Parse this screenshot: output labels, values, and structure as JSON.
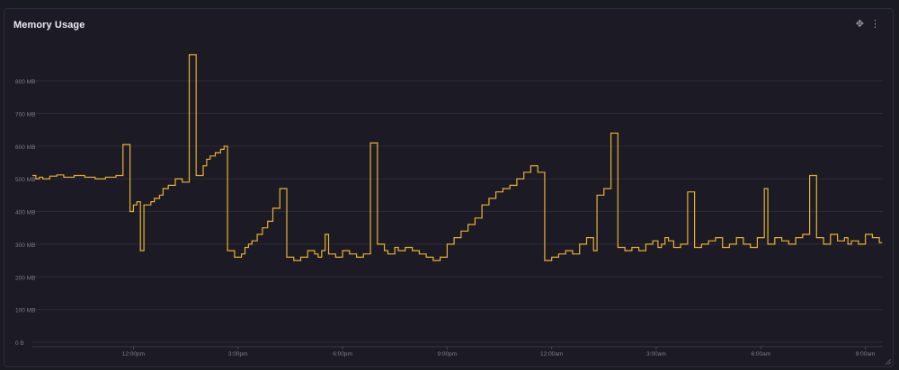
{
  "panel": {
    "title": "Memory Usage",
    "icons": [
      "move-icon",
      "more-vertical-icon"
    ]
  },
  "colors": {
    "background": "#1c1b25",
    "line": "#e8b030",
    "grid": "#2c2b35",
    "axis_text": "#7d7b8a"
  },
  "chart_data": {
    "type": "line",
    "title": "Memory Usage",
    "xlabel": "",
    "ylabel": "",
    "ylim": [
      0,
      800
    ],
    "y_ticks": [
      "0 B",
      "100 MB",
      "200 MB",
      "300 MB",
      "400 MB",
      "500 MB",
      "600 MB",
      "700 MB",
      "800 MB"
    ],
    "y_tick_values": [
      0,
      100,
      200,
      300,
      400,
      500,
      600,
      700,
      800
    ],
    "x_ticks": [
      "12:00pm",
      "3:00pm",
      "6:00pm",
      "9:00pm",
      "12:00am",
      "3:00am",
      "6:00am",
      "9:00am"
    ],
    "x_tick_hours": [
      12,
      15,
      18,
      21,
      24,
      27,
      30,
      33
    ],
    "xlim_hours": [
      9.1,
      33.5
    ],
    "grid": true,
    "step": true,
    "series": [
      {
        "color": "#e8b030",
        "x": [
          9.1,
          9.2,
          9.3,
          9.4,
          9.6,
          9.8,
          10.0,
          10.3,
          10.6,
          10.9,
          11.2,
          11.5,
          11.7,
          11.9,
          12.0,
          12.1,
          12.2,
          12.3,
          12.5,
          12.6,
          12.75,
          12.85,
          13.0,
          13.2,
          13.4,
          13.6,
          13.8,
          14.0,
          14.1,
          14.2,
          14.35,
          14.5,
          14.6,
          14.7,
          14.9,
          15.1,
          15.2,
          15.3,
          15.4,
          15.55,
          15.7,
          15.85,
          16.0,
          16.2,
          16.4,
          16.6,
          16.8,
          17.0,
          17.2,
          17.3,
          17.4,
          17.5,
          17.6,
          17.8,
          18.0,
          18.2,
          18.4,
          18.6,
          18.8,
          19.0,
          19.2,
          19.3,
          19.5,
          19.6,
          19.8,
          20.0,
          20.2,
          20.4,
          20.6,
          20.8,
          21.0,
          21.2,
          21.4,
          21.6,
          21.8,
          22.0,
          22.2,
          22.4,
          22.6,
          22.8,
          23.0,
          23.2,
          23.4,
          23.6,
          23.8,
          24.0,
          24.2,
          24.4,
          24.6,
          24.8,
          25.0,
          25.2,
          25.3,
          25.5,
          25.7,
          25.9,
          26.1,
          26.3,
          26.5,
          26.7,
          26.9,
          27.05,
          27.15,
          27.25,
          27.35,
          27.5,
          27.7,
          27.9,
          28.1,
          28.3,
          28.5,
          28.7,
          28.9,
          29.1,
          29.3,
          29.5,
          29.7,
          29.9,
          30.1,
          30.2,
          30.4,
          30.6,
          30.8,
          31.0,
          31.2,
          31.4,
          31.6,
          31.8,
          32.0,
          32.2,
          32.4,
          32.5,
          32.6,
          32.8,
          33.0,
          33.2,
          33.4
        ],
        "y": [
          510,
          500,
          505,
          500,
          508,
          512,
          505,
          510,
          505,
          500,
          505,
          510,
          605,
          400,
          420,
          430,
          280,
          420,
          430,
          440,
          450,
          470,
          480,
          500,
          490,
          880,
          510,
          540,
          560,
          570,
          580,
          590,
          600,
          280,
          260,
          270,
          290,
          300,
          310,
          330,
          350,
          370,
          410,
          470,
          260,
          250,
          260,
          280,
          270,
          260,
          280,
          330,
          270,
          260,
          280,
          270,
          260,
          270,
          610,
          300,
          280,
          270,
          290,
          280,
          290,
          280,
          270,
          260,
          250,
          260,
          300,
          320,
          340,
          360,
          380,
          420,
          440,
          460,
          470,
          480,
          500,
          520,
          540,
          520,
          250,
          260,
          270,
          280,
          270,
          300,
          320,
          280,
          450,
          470,
          640,
          290,
          280,
          290,
          280,
          300,
          310,
          290,
          300,
          320,
          310,
          290,
          300,
          460,
          290,
          300,
          310,
          320,
          290,
          300,
          320,
          300,
          290,
          320,
          470,
          300,
          320,
          310,
          300,
          320,
          330,
          510,
          320,
          300,
          330,
          310,
          320,
          300,
          310,
          300,
          330,
          320,
          305
        ]
      }
    ]
  }
}
